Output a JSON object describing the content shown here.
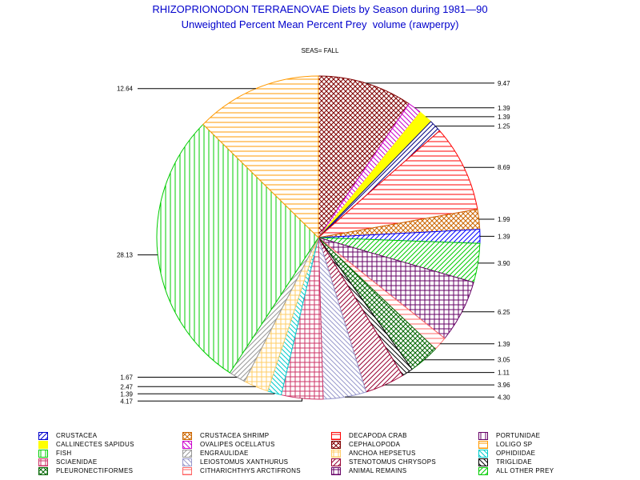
{
  "title_line1": "RHIZOPRIONODON TERRAENOVAE Diets by Season during 1981—90",
  "title_line2": "Unweighted Percent Mean Percent Prey  volume (rawperpy)",
  "chart_data": {
    "type": "pie",
    "subtitle": "SEAS= FALL",
    "slices": [
      {
        "name": "CEPHALOPODA",
        "value": 9.47,
        "label": "9.47",
        "color": "#800000",
        "pattern": "cross"
      },
      {
        "name": "OVALIPES OCELLATUS",
        "value": 1.39,
        "label": "1.39",
        "color": "#cc00cc",
        "pattern": "diag-back"
      },
      {
        "name": "CALLINECTES SAPIDUS",
        "value": 1.39,
        "label": "1.39",
        "color": "#ffff00",
        "pattern": "solid"
      },
      {
        "name": "CRUSTACEA",
        "value": 1.25,
        "label": "1.25",
        "color": "#000080",
        "pattern": "diag"
      },
      {
        "name": "DECAPODA CRAB",
        "value": 8.69,
        "label": "8.69",
        "color": "#ff0000",
        "pattern": "hlines"
      },
      {
        "name": "CRUSTACEA SHRIMP",
        "value": 1.99,
        "label": "1.99",
        "color": "#cc6600",
        "pattern": "cross"
      },
      {
        "name": "CRUSTACEA",
        "value": 1.39,
        "label": "1.39",
        "color": "#0000ff",
        "pattern": "diag"
      },
      {
        "name": "ALL OTHER PREY",
        "value": 3.9,
        "label": "3.90",
        "color": "#00cc00",
        "pattern": "diag"
      },
      {
        "name": "ANIMAL REMAINS",
        "value": 6.25,
        "label": "6.25",
        "color": "#660066",
        "pattern": "grid"
      },
      {
        "name": "CITHARICHTHYS ARCTIFRONS",
        "value": 1.39,
        "label": "1.39",
        "color": "#ff6666",
        "pattern": "hlines"
      },
      {
        "name": "PLEURONECTIFORMES",
        "value": 3.05,
        "label": "3.05",
        "color": "#006600",
        "pattern": "cross"
      },
      {
        "name": "TRIGLIDAE",
        "value": 1.11,
        "label": "1.11",
        "color": "#000000",
        "pattern": "diag-back"
      },
      {
        "name": "STENOTOMUS CHRYSOPS",
        "value": 3.96,
        "label": "3.96",
        "color": "#990033",
        "pattern": "diag"
      },
      {
        "name": "LEIOSTOMUS XANTHURUS",
        "value": 4.3,
        "label": "4.30",
        "color": "#9999cc",
        "pattern": "diag-back"
      },
      {
        "name": "SCIAENIDAE",
        "value": 4.17,
        "label": "4.17",
        "color": "#cc3366",
        "pattern": "grid"
      },
      {
        "name": "OPHIDIIDAE",
        "value": 1.39,
        "label": "1.39",
        "color": "#00cccc",
        "pattern": "diag-back"
      },
      {
        "name": "ANCHOA HEPSETUS",
        "value": 2.47,
        "label": "2.47",
        "color": "#ffcc66",
        "pattern": "grid"
      },
      {
        "name": "ENGRAULIDAE",
        "value": 1.67,
        "label": "1.67",
        "color": "#999999",
        "pattern": "diag"
      },
      {
        "name": "FISH",
        "value": 28.13,
        "label": "28.13",
        "color": "#00cc00",
        "pattern": "vlines"
      },
      {
        "name": "LOLIGO SP",
        "value": 12.64,
        "label": "12.64",
        "color": "#ff9900",
        "pattern": "hlines"
      }
    ],
    "legend": [
      {
        "name": "CRUSTACEA",
        "color": "#0000cc",
        "pattern": "diag"
      },
      {
        "name": "CRUSTACEA SHRIMP",
        "color": "#cc6600",
        "pattern": "cross"
      },
      {
        "name": "DECAPODA CRAB",
        "color": "#ff0000",
        "pattern": "hlines"
      },
      {
        "name": "PORTUNIDAE",
        "color": "#660066",
        "pattern": "vlines"
      },
      {
        "name": "CALLINECTES SAPIDUS",
        "color": "#ffff00",
        "pattern": "solid"
      },
      {
        "name": "OVALIPES OCELLATUS",
        "color": "#cc00cc",
        "pattern": "diag-back"
      },
      {
        "name": "CEPHALOPODA",
        "color": "#800000",
        "pattern": "cross"
      },
      {
        "name": "LOLIGO SP",
        "color": "#ff9900",
        "pattern": "hlines"
      },
      {
        "name": "FISH",
        "color": "#00cc00",
        "pattern": "vlines"
      },
      {
        "name": "ENGRAULIDAE",
        "color": "#999999",
        "pattern": "diag"
      },
      {
        "name": "ANCHOA HEPSETUS",
        "color": "#ffcc66",
        "pattern": "grid"
      },
      {
        "name": "OPHIDIIDAE",
        "color": "#00cccc",
        "pattern": "diag-back"
      },
      {
        "name": "SCIAENIDAE",
        "color": "#cc3366",
        "pattern": "grid"
      },
      {
        "name": "LEIOSTOMUS XANTHURUS",
        "color": "#9999cc",
        "pattern": "diag-back"
      },
      {
        "name": "STENOTOMUS CHRYSOPS",
        "color": "#990033",
        "pattern": "diag"
      },
      {
        "name": "TRIGLIDAE",
        "color": "#000000",
        "pattern": "diag-back"
      },
      {
        "name": "PLEURONECTIFORMES",
        "color": "#006600",
        "pattern": "cross"
      },
      {
        "name": "CITHARICHTHYS ARCTIFRONS",
        "color": "#ff6666",
        "pattern": "hlines"
      },
      {
        "name": "ANIMAL REMAINS",
        "color": "#660066",
        "pattern": "grid"
      },
      {
        "name": "ALL OTHER PREY",
        "color": "#00cc00",
        "pattern": "diag"
      }
    ]
  }
}
